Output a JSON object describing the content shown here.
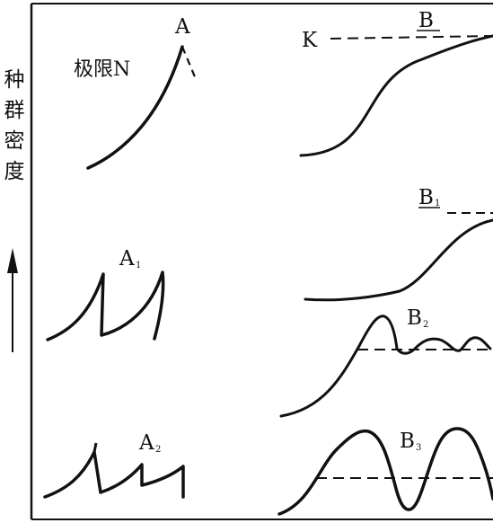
{
  "y_axis_label": [
    "种",
    "群",
    "密",
    "度"
  ],
  "labels": {
    "a": "A",
    "limit": "极限N",
    "b": "B",
    "k": "K",
    "b1": "B",
    "b1_sub": "1",
    "a1": "A",
    "a1_sub": "1",
    "b2": "B",
    "b2_sub": "2",
    "a2": "A",
    "a2_sub": "2",
    "b3": "B",
    "b3_sub": "3"
  },
  "colors": {
    "ink": "#111111",
    "background": "#ffffff"
  }
}
